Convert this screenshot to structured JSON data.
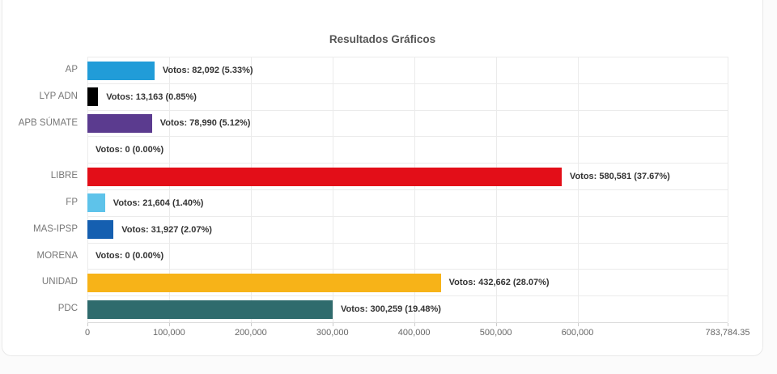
{
  "card": {
    "title": "Resultados Gráficos"
  },
  "chart_data": {
    "type": "bar",
    "orientation": "horizontal",
    "title": "Resultados Gráficos",
    "xlabel": "",
    "ylabel": "",
    "grid": true,
    "legend": false,
    "xlim": [
      0,
      783784.35
    ],
    "categories": [
      "AP",
      "LYP ADN",
      "APB SÚMATE",
      "",
      "LIBRE",
      "FP",
      "MAS-IPSP",
      "MORENA",
      "UNIDAD",
      "PDC"
    ],
    "values": [
      82092,
      13163,
      78990,
      0,
      580581,
      21604,
      31927,
      0,
      432662,
      300259
    ],
    "percentages": [
      "5.33%",
      "0.85%",
      "5.12%",
      "0.00%",
      "37.67%",
      "1.40%",
      "2.07%",
      "0.00%",
      "28.07%",
      "19.48%"
    ],
    "value_labels": [
      "Votos: 82,092 (5.33%)",
      "Votos: 13,163 (0.85%)",
      "Votos: 78,990 (5.12%)",
      "Votos: 0 (0.00%)",
      "Votos: 580,581 (37.67%)",
      "Votos: 21,604 (1.40%)",
      "Votos: 31,927 (2.07%)",
      "Votos: 0 (0.00%)",
      "Votos: 432,662 (28.07%)",
      "Votos: 300,259 (19.48%)"
    ],
    "colors": [
      "#219CD8",
      "#000000",
      "#5B3B8F",
      "#CCCCCC",
      "#E30E18",
      "#5EC3EA",
      "#155FB0",
      "#CCCCCC",
      "#F7B318",
      "#2F6B6D"
    ],
    "x_tick_values": [
      0,
      100000,
      200000,
      300000,
      400000,
      500000,
      600000,
      783784.35
    ],
    "x_tick_labels": [
      "0",
      "100,000",
      "200,000",
      "300,000",
      "400,000",
      "500,000",
      "600,000",
      "783,784.35"
    ]
  }
}
